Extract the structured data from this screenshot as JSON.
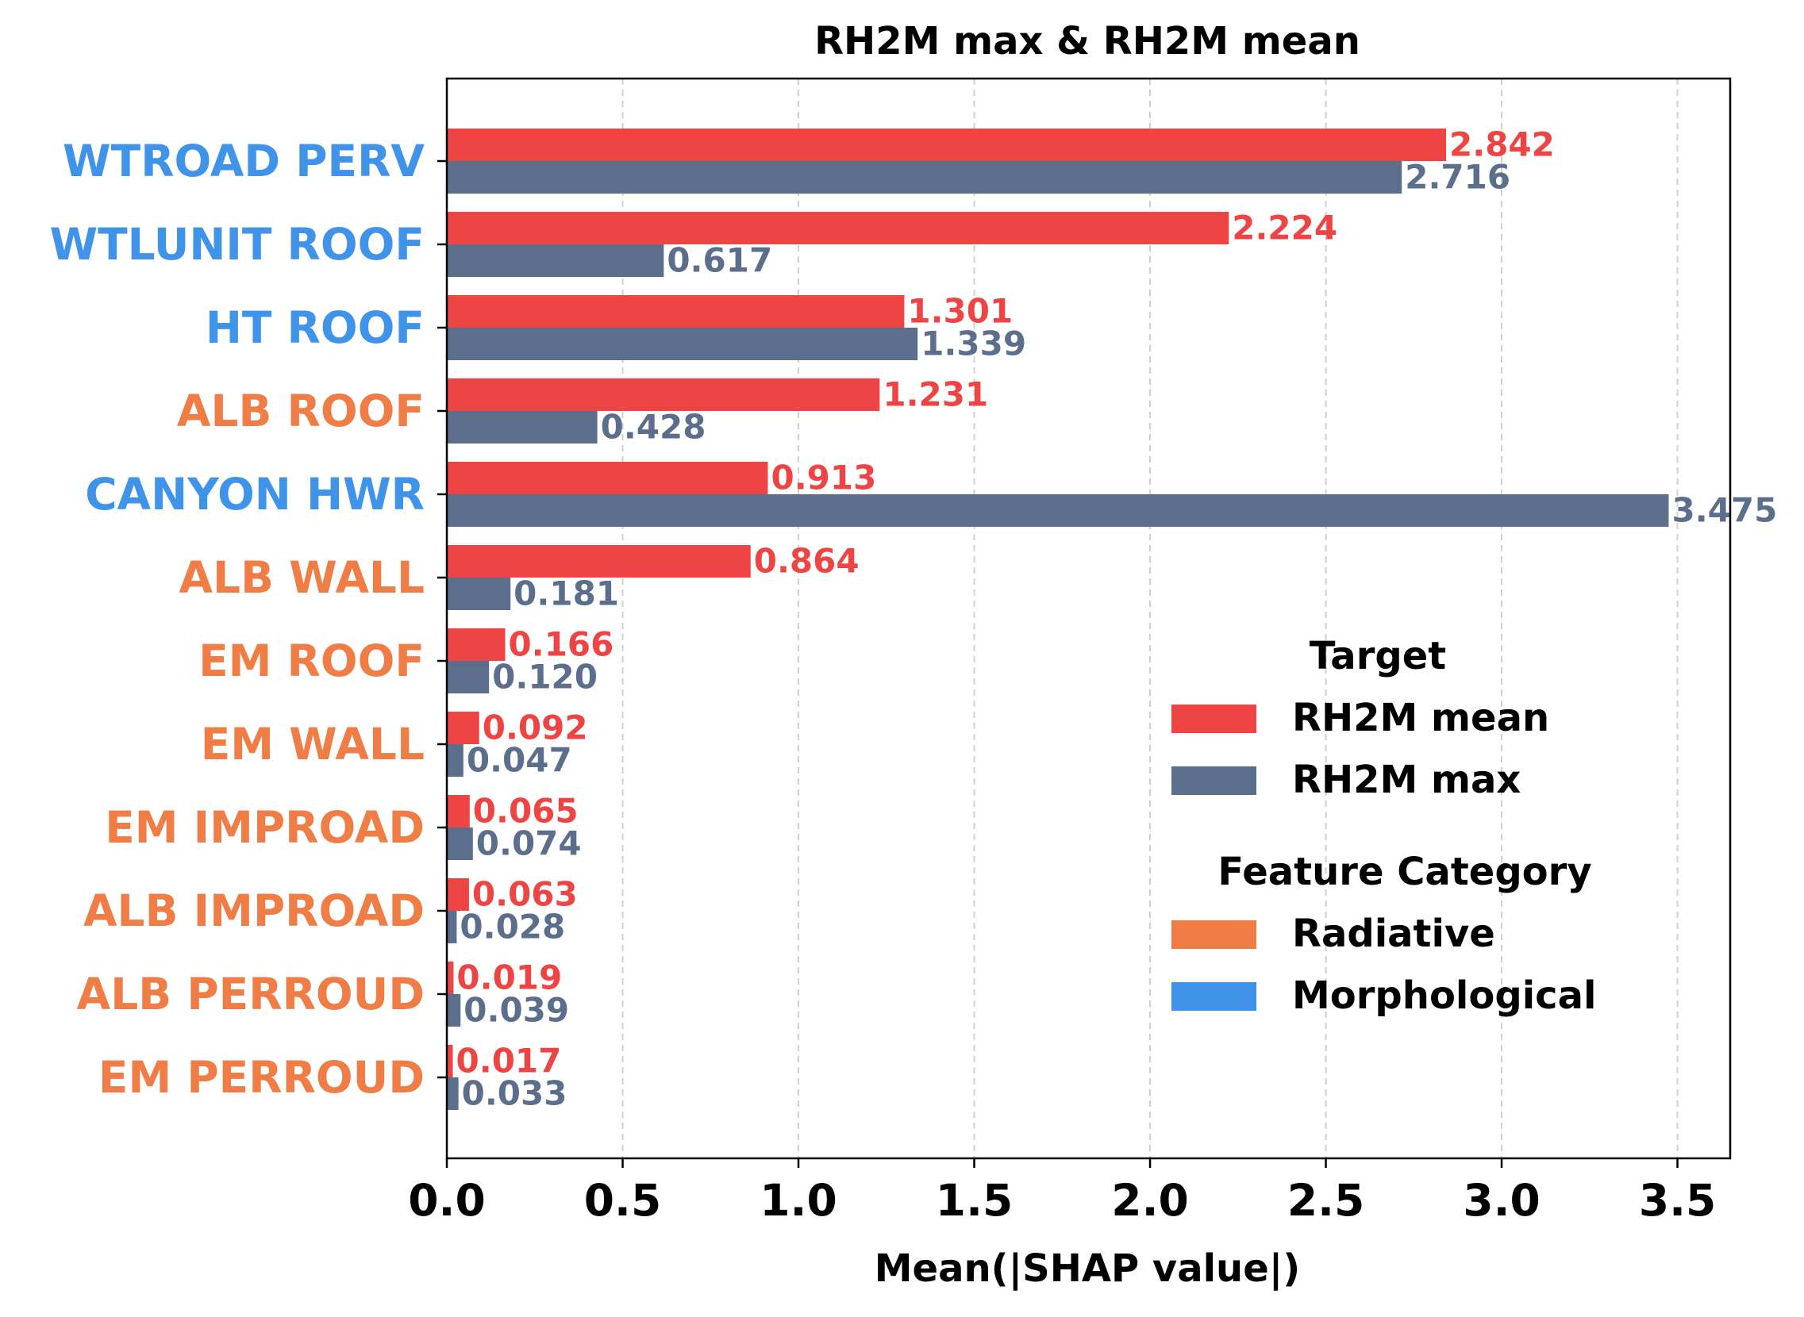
{
  "chart_data": {
    "type": "bar",
    "orientation": "horizontal",
    "title": "RH2M max & RH2M mean",
    "xlabel": "Mean(|SHAP value|)",
    "ylabel": "",
    "xlim": [
      0,
      3.65
    ],
    "xticks": [
      "0.0",
      "0.5",
      "1.0",
      "1.5",
      "2.0",
      "2.5",
      "3.0",
      "3.5"
    ],
    "xtick_values": [
      0,
      0.5,
      1.0,
      1.5,
      2.0,
      2.5,
      3.0,
      3.5
    ],
    "grid": "x dashed",
    "categories": [
      "WTROAD PERV",
      "WTLUNIT ROOF",
      "HT ROOF",
      "ALB ROOF",
      "CANYON HWR",
      "ALB WALL",
      "EM ROOF",
      "EM WALL",
      "EM IMPROAD",
      "ALB IMPROAD",
      "ALB PERROUD",
      "EM PERROUD"
    ],
    "category_groups": [
      "Morphological",
      "Morphological",
      "Morphological",
      "Radiative",
      "Morphological",
      "Radiative",
      "Radiative",
      "Radiative",
      "Radiative",
      "Radiative",
      "Radiative",
      "Radiative"
    ],
    "series": [
      {
        "name": "RH2M mean",
        "color": "#ef4444",
        "values": [
          2.842,
          2.224,
          1.301,
          1.231,
          0.913,
          0.864,
          0.166,
          0.092,
          0.065,
          0.063,
          0.019,
          0.017
        ],
        "labels": [
          "2.842",
          "2.224",
          "1.301",
          "1.231",
          "0.913",
          "0.864",
          "0.166",
          "0.092",
          "0.065",
          "0.063",
          "0.019",
          "0.017"
        ]
      },
      {
        "name": "RH2M max",
        "color": "#5b6e8c",
        "values": [
          2.716,
          0.617,
          1.339,
          0.428,
          3.475,
          0.181,
          0.12,
          0.047,
          0.074,
          0.028,
          0.039,
          0.033
        ],
        "labels": [
          "2.716",
          "0.617",
          "1.339",
          "0.428",
          "3.475",
          "0.181",
          "0.120",
          "0.047",
          "0.074",
          "0.028",
          "0.039",
          "0.033"
        ]
      }
    ],
    "group_colors": {
      "Radiative": "#ef7d45",
      "Morphological": "#3f93e8"
    },
    "legend": {
      "placement": "center-right",
      "sections": [
        {
          "title": "Target",
          "entries": [
            {
              "label": "RH2M mean",
              "color": "#ef4444"
            },
            {
              "label": "RH2M max",
              "color": "#5b6e8c"
            }
          ]
        },
        {
          "title": "Feature Category",
          "entries": [
            {
              "label": "Radiative",
              "color": "#ef7d45"
            },
            {
              "label": "Morphological",
              "color": "#3f93e8"
            }
          ]
        }
      ]
    }
  }
}
